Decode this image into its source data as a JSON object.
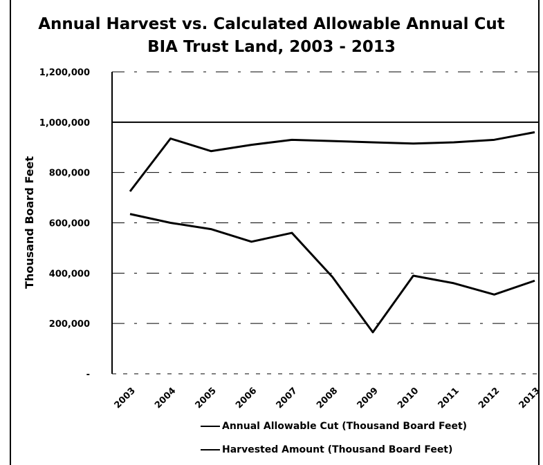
{
  "chart_data": {
    "type": "line",
    "title": "Annual Harvest vs. Calculated Allowable Annual Cut",
    "subtitle": "BIA Trust Land, 2003 - 2013",
    "ylabel": "Thousand Board Feet",
    "xlabel": "",
    "x": [
      "2003",
      "2004",
      "2005",
      "2006",
      "2007",
      "2008",
      "2009",
      "2010",
      "2011",
      "2012",
      "2013"
    ],
    "ylim": [
      0,
      1200000
    ],
    "yticks": [
      0,
      200000,
      400000,
      600000,
      800000,
      1000000,
      1200000
    ],
    "ytick_labels": [
      "-",
      "200,000",
      "400,000",
      "600,000",
      "800,000",
      "1,000,000",
      "1,200,000"
    ],
    "grid": true,
    "legend_position": "bottom",
    "series": [
      {
        "name": "Annual Allowable Cut (Thousand Board Feet)",
        "values": [
          725000,
          935000,
          885000,
          910000,
          930000,
          925000,
          920000,
          915000,
          920000,
          930000,
          960000
        ]
      },
      {
        "name": "Harvested Amount (Thousand Board Feet)",
        "values": [
          635000,
          600000,
          575000,
          525000,
          560000,
          385000,
          165000,
          390000,
          360000,
          315000,
          370000
        ]
      }
    ]
  },
  "colors": {
    "line": "#000000",
    "background": "#ffffff"
  }
}
